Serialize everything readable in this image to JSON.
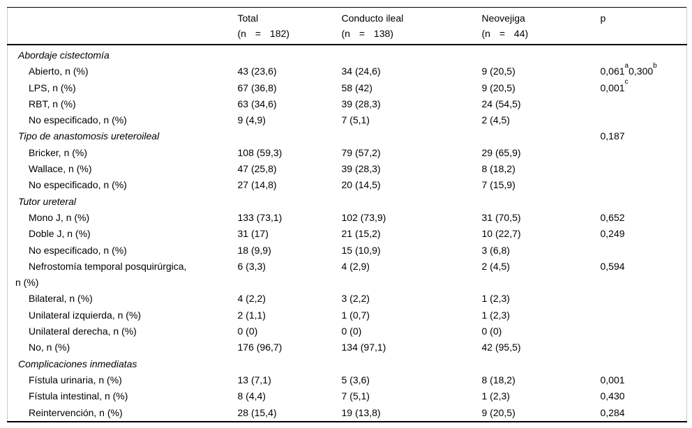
{
  "table": {
    "columns": [
      {
        "line1": "",
        "line2": ""
      },
      {
        "line1": "Total",
        "line2": "(n = 182)"
      },
      {
        "line1": "Conducto ileal",
        "line2": "(n = 138)"
      },
      {
        "line1": "Neovejiga",
        "line2": "(n = 44)"
      },
      {
        "line1": "p",
        "line2": ""
      }
    ],
    "rows": [
      {
        "type": "section",
        "label": "Abordaje cistectomía",
        "total": "",
        "conducto": "",
        "neovejiga": "",
        "p": ""
      },
      {
        "type": "item",
        "label": "Abierto, n (%)",
        "total": "43 (23,6)",
        "conducto": "34 (24,6)",
        "neovejiga": "9 (20,5)",
        "p": "0,061^a^0,300^b"
      },
      {
        "type": "item",
        "label": "LPS, n (%)",
        "total": "67 (36,8)",
        "conducto": "58 (42)",
        "neovejiga": "9 (20,5)",
        "p": "0,001^c"
      },
      {
        "type": "item",
        "label": "RBT, n (%)",
        "total": "63 (34,6)",
        "conducto": "39 (28,3)",
        "neovejiga": "24 (54,5)",
        "p": ""
      },
      {
        "type": "item",
        "label": "No especificado, n (%)",
        "total": "9 (4,9)",
        "conducto": "7 (5,1)",
        "neovejiga": "2 (4,5)",
        "p": ""
      },
      {
        "type": "section",
        "label": "Tipo de anastomosis ureteroileal",
        "total": "",
        "conducto": "",
        "neovejiga": "",
        "p": "0,187"
      },
      {
        "type": "item",
        "label": "Bricker, n (%)",
        "total": "108 (59,3)",
        "conducto": "79 (57,2)",
        "neovejiga": "29 (65,9)",
        "p": ""
      },
      {
        "type": "item",
        "label": "Wallace, n (%)",
        "total": "47 (25,8)",
        "conducto": "39 (28,3)",
        "neovejiga": "8 (18,2)",
        "p": ""
      },
      {
        "type": "item",
        "label": "No especificado, n (%)",
        "total": "27 (14,8)",
        "conducto": "20 (14,5)",
        "neovejiga": "7 (15,9)",
        "p": ""
      },
      {
        "type": "section",
        "label": "Tutor ureteral",
        "total": "",
        "conducto": "",
        "neovejiga": "",
        "p": ""
      },
      {
        "type": "item",
        "label": "Mono J, n (%)",
        "total": "133 (73,1)",
        "conducto": "102 (73,9)",
        "neovejiga": "31 (70,5)",
        "p": "0,652"
      },
      {
        "type": "item",
        "label": "Doble J, n (%)",
        "total": "31 (17)",
        "conducto": "21 (15,2)",
        "neovejiga": "10 (22,7)",
        "p": "0,249"
      },
      {
        "type": "item",
        "label": "No especificado, n (%)",
        "total": "18 (9,9)",
        "conducto": "15 (10,9)",
        "neovejiga": "3 (6,8)",
        "p": ""
      },
      {
        "type": "wrap",
        "label": "Nefrostomía temporal posquirúrgica,\nn (%)",
        "total": "6 (3,3)",
        "conducto": "4 (2,9)",
        "neovejiga": "2 (4,5)",
        "p": "0,594"
      },
      {
        "type": "item",
        "label": "Bilateral, n (%)",
        "total": "4 (2,2)",
        "conducto": "3 (2,2)",
        "neovejiga": "1 (2,3)",
        "p": ""
      },
      {
        "type": "item",
        "label": "Unilateral izquierda, n (%)",
        "total": "2 (1,1)",
        "conducto": "1 (0,7)",
        "neovejiga": "1 (2,3)",
        "p": ""
      },
      {
        "type": "item",
        "label": "Unilateral derecha, n (%)",
        "total": "0 (0)",
        "conducto": "0 (0)",
        "neovejiga": "0 (0)",
        "p": ""
      },
      {
        "type": "item",
        "label": "No, n (%)",
        "total": "176 (96,7)",
        "conducto": "134 (97,1)",
        "neovejiga": "42 (95,5)",
        "p": ""
      },
      {
        "type": "section",
        "label": "Complicaciones inmediatas",
        "total": "",
        "conducto": "",
        "neovejiga": "",
        "p": ""
      },
      {
        "type": "item",
        "label": "Fístula urinaria, n (%)",
        "total": "13 (7,1)",
        "conducto": "5 (3,6)",
        "neovejiga": "8 (18,2)",
        "p": "0,001"
      },
      {
        "type": "item",
        "label": "Fístula intestinal, n (%)",
        "total": "8 (4,4)",
        "conducto": "7 (5,1)",
        "neovejiga": "1 (2,3)",
        "p": "0,430"
      },
      {
        "type": "item",
        "label": "Reintervención, n (%)",
        "total": "28 (15,4)",
        "conducto": "19 (13,8)",
        "neovejiga": "9 (20,5)",
        "p": "0,284"
      }
    ]
  }
}
